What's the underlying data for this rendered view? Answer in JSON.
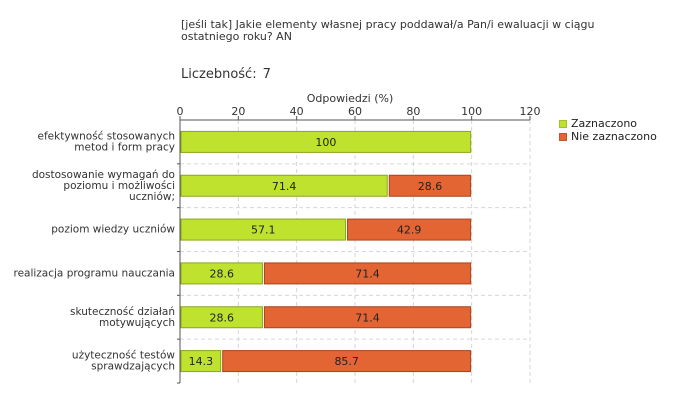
{
  "header": {
    "question": "[jeśli tak]  Jakie elementy własnej pracy poddawał/a Pan/i ewaluacji w ciągu ostatniego roku? AN",
    "count_label": "Liczebność:",
    "count_value": "7"
  },
  "colors": {
    "selected": "#bfe22f",
    "selected_border": "#8aa61c",
    "not_selected": "#e36534",
    "not_selected_border": "#a9431c",
    "grid": "#d6d6d6",
    "axis": "#555555"
  },
  "chart_data": {
    "type": "bar",
    "orientation": "horizontal",
    "stacked": true,
    "title": "Odpowiedzi (%)",
    "xlabel": "Odpowiedzi (%)",
    "xlim": [
      0,
      120
    ],
    "xticks": [
      "0",
      "20",
      "40",
      "60",
      "80",
      "100",
      "120"
    ],
    "grid": true,
    "legend_position": "right",
    "categories": [
      [
        "efektywność stosowanych",
        "metod i form pracy"
      ],
      [
        "dostosowanie wymagań do",
        "poziomu i możliwości",
        "uczniów;"
      ],
      [
        "poziom wiedzy uczniów"
      ],
      [
        "realizacja programu nauczania"
      ],
      [
        "skuteczność działań",
        "motywujących"
      ],
      [
        "użyteczność testów",
        "sprawdzających"
      ]
    ],
    "series": [
      {
        "name": "Zaznaczono",
        "values": [
          100,
          71.4,
          57.1,
          28.6,
          28.6,
          14.3
        ],
        "labels": [
          "100",
          "71.4",
          "57.1",
          "28.6",
          "28.6",
          "14.3"
        ]
      },
      {
        "name": "Nie zaznaczono",
        "values": [
          0,
          28.6,
          42.9,
          71.4,
          71.4,
          85.7
        ],
        "labels": [
          "",
          "28.6",
          "42.9",
          "71.4",
          "71.4",
          "85.7"
        ]
      }
    ]
  }
}
